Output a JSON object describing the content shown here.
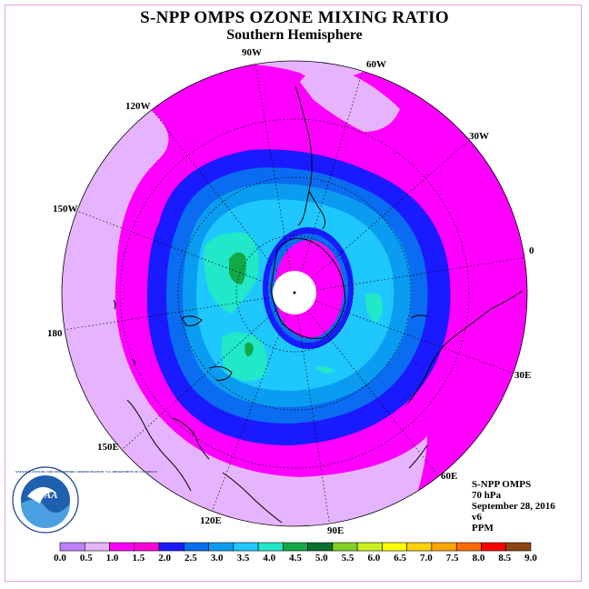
{
  "title": "S-NPP OMPS OZONE MIXING RATIO",
  "subtitle": "Southern Hemisphere",
  "longitude_labels": [
    "90W",
    "60W",
    "30W",
    "0",
    "30E",
    "60E",
    "90E",
    "120E",
    "150E",
    "180",
    "150W",
    "120W"
  ],
  "info": {
    "instrument": "S-NPP OMPS",
    "level": "70 hPa",
    "date": "September 28, 2016",
    "version": "v6",
    "units": "PPM"
  },
  "colorbar": {
    "ticks": [
      "0.0",
      "0.5",
      "1.0",
      "1.5",
      "2.0",
      "2.5",
      "3.0",
      "3.5",
      "4.0",
      "4.5",
      "5.0",
      "5.5",
      "6.0",
      "6.5",
      "7.0",
      "7.5",
      "8.0",
      "8.5",
      "9.0"
    ],
    "colors": [
      "#c080ff",
      "#e6b4ff",
      "#ff00ff",
      "#ff00d8",
      "#1a1aff",
      "#0a6cf0",
      "#0a9cf0",
      "#1ec8ff",
      "#20e8c8",
      "#13a848",
      "#0a7030",
      "#7fd020",
      "#c8f020",
      "#ffff00",
      "#ffd200",
      "#ffa500",
      "#ff6a00",
      "#ff0000",
      "#8b4513"
    ]
  },
  "logo": {
    "text": "NOAA",
    "ring_text": "NATIONAL OCEANIC AND ATMOSPHERIC ADMINISTRATION · U.S. DEPARTMENT OF COMMERCE"
  }
}
